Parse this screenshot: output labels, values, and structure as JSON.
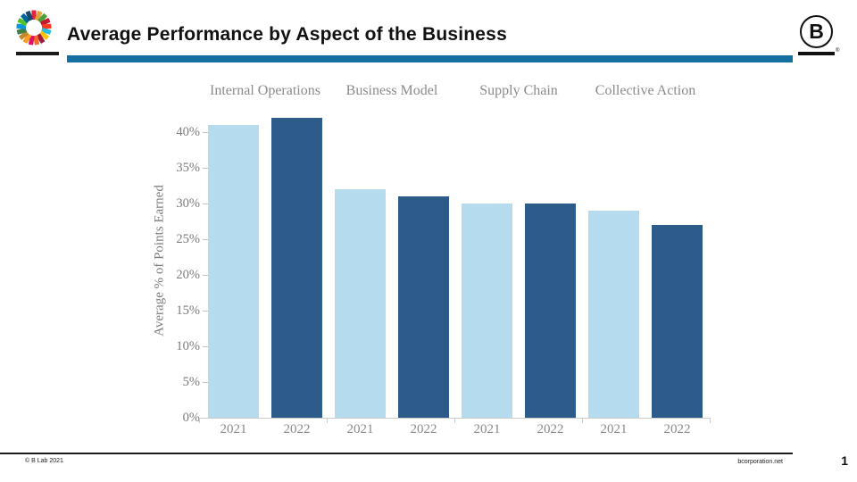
{
  "slide": {
    "title": "Average Performance by Aspect of the Business",
    "page_number": "1",
    "footer_left": "© B Lab 2021",
    "footer_right": "bcorporation.net"
  },
  "logos": {
    "b_mark_letter": "B",
    "registered_symbol": "®",
    "sdg_wheel_colors": [
      "#E5243B",
      "#DDA63A",
      "#4C9F38",
      "#C5192D",
      "#FF3A21",
      "#26BDE2",
      "#FCC30B",
      "#A21942",
      "#FD6925",
      "#DD1367",
      "#FD9D24",
      "#BF8B2E",
      "#3F7E44",
      "#0A97D9",
      "#56C02B",
      "#00689D",
      "#19486A"
    ]
  },
  "colors": {
    "accent_rule": "#1470A1",
    "bar_2021": "#B5DCEE",
    "bar_2022": "#2E5C8A",
    "chart_text": "#8A8A8A",
    "axis_line": "#CCCCCC"
  },
  "chart_data": {
    "type": "bar",
    "title": "",
    "xlabel": "",
    "ylabel": "Average % of Points Earned",
    "ylim": [
      0,
      45
    ],
    "ytick_step": 5,
    "ytick_labels": [
      "0%",
      "5%",
      "10%",
      "15%",
      "20%",
      "25%",
      "30%",
      "35%",
      "40%"
    ],
    "grid": false,
    "legend_position": "none",
    "categories": [
      "Internal Operations",
      "Business Model",
      "Supply Chain",
      "Collective Action"
    ],
    "x_sublabels": [
      "2021",
      "2022"
    ],
    "series": [
      {
        "name": "2021",
        "color": "#B5DCEE",
        "values": [
          41,
          32,
          30,
          29
        ]
      },
      {
        "name": "2022",
        "color": "#2E5C8A",
        "values": [
          42,
          31,
          30,
          27
        ]
      }
    ]
  }
}
